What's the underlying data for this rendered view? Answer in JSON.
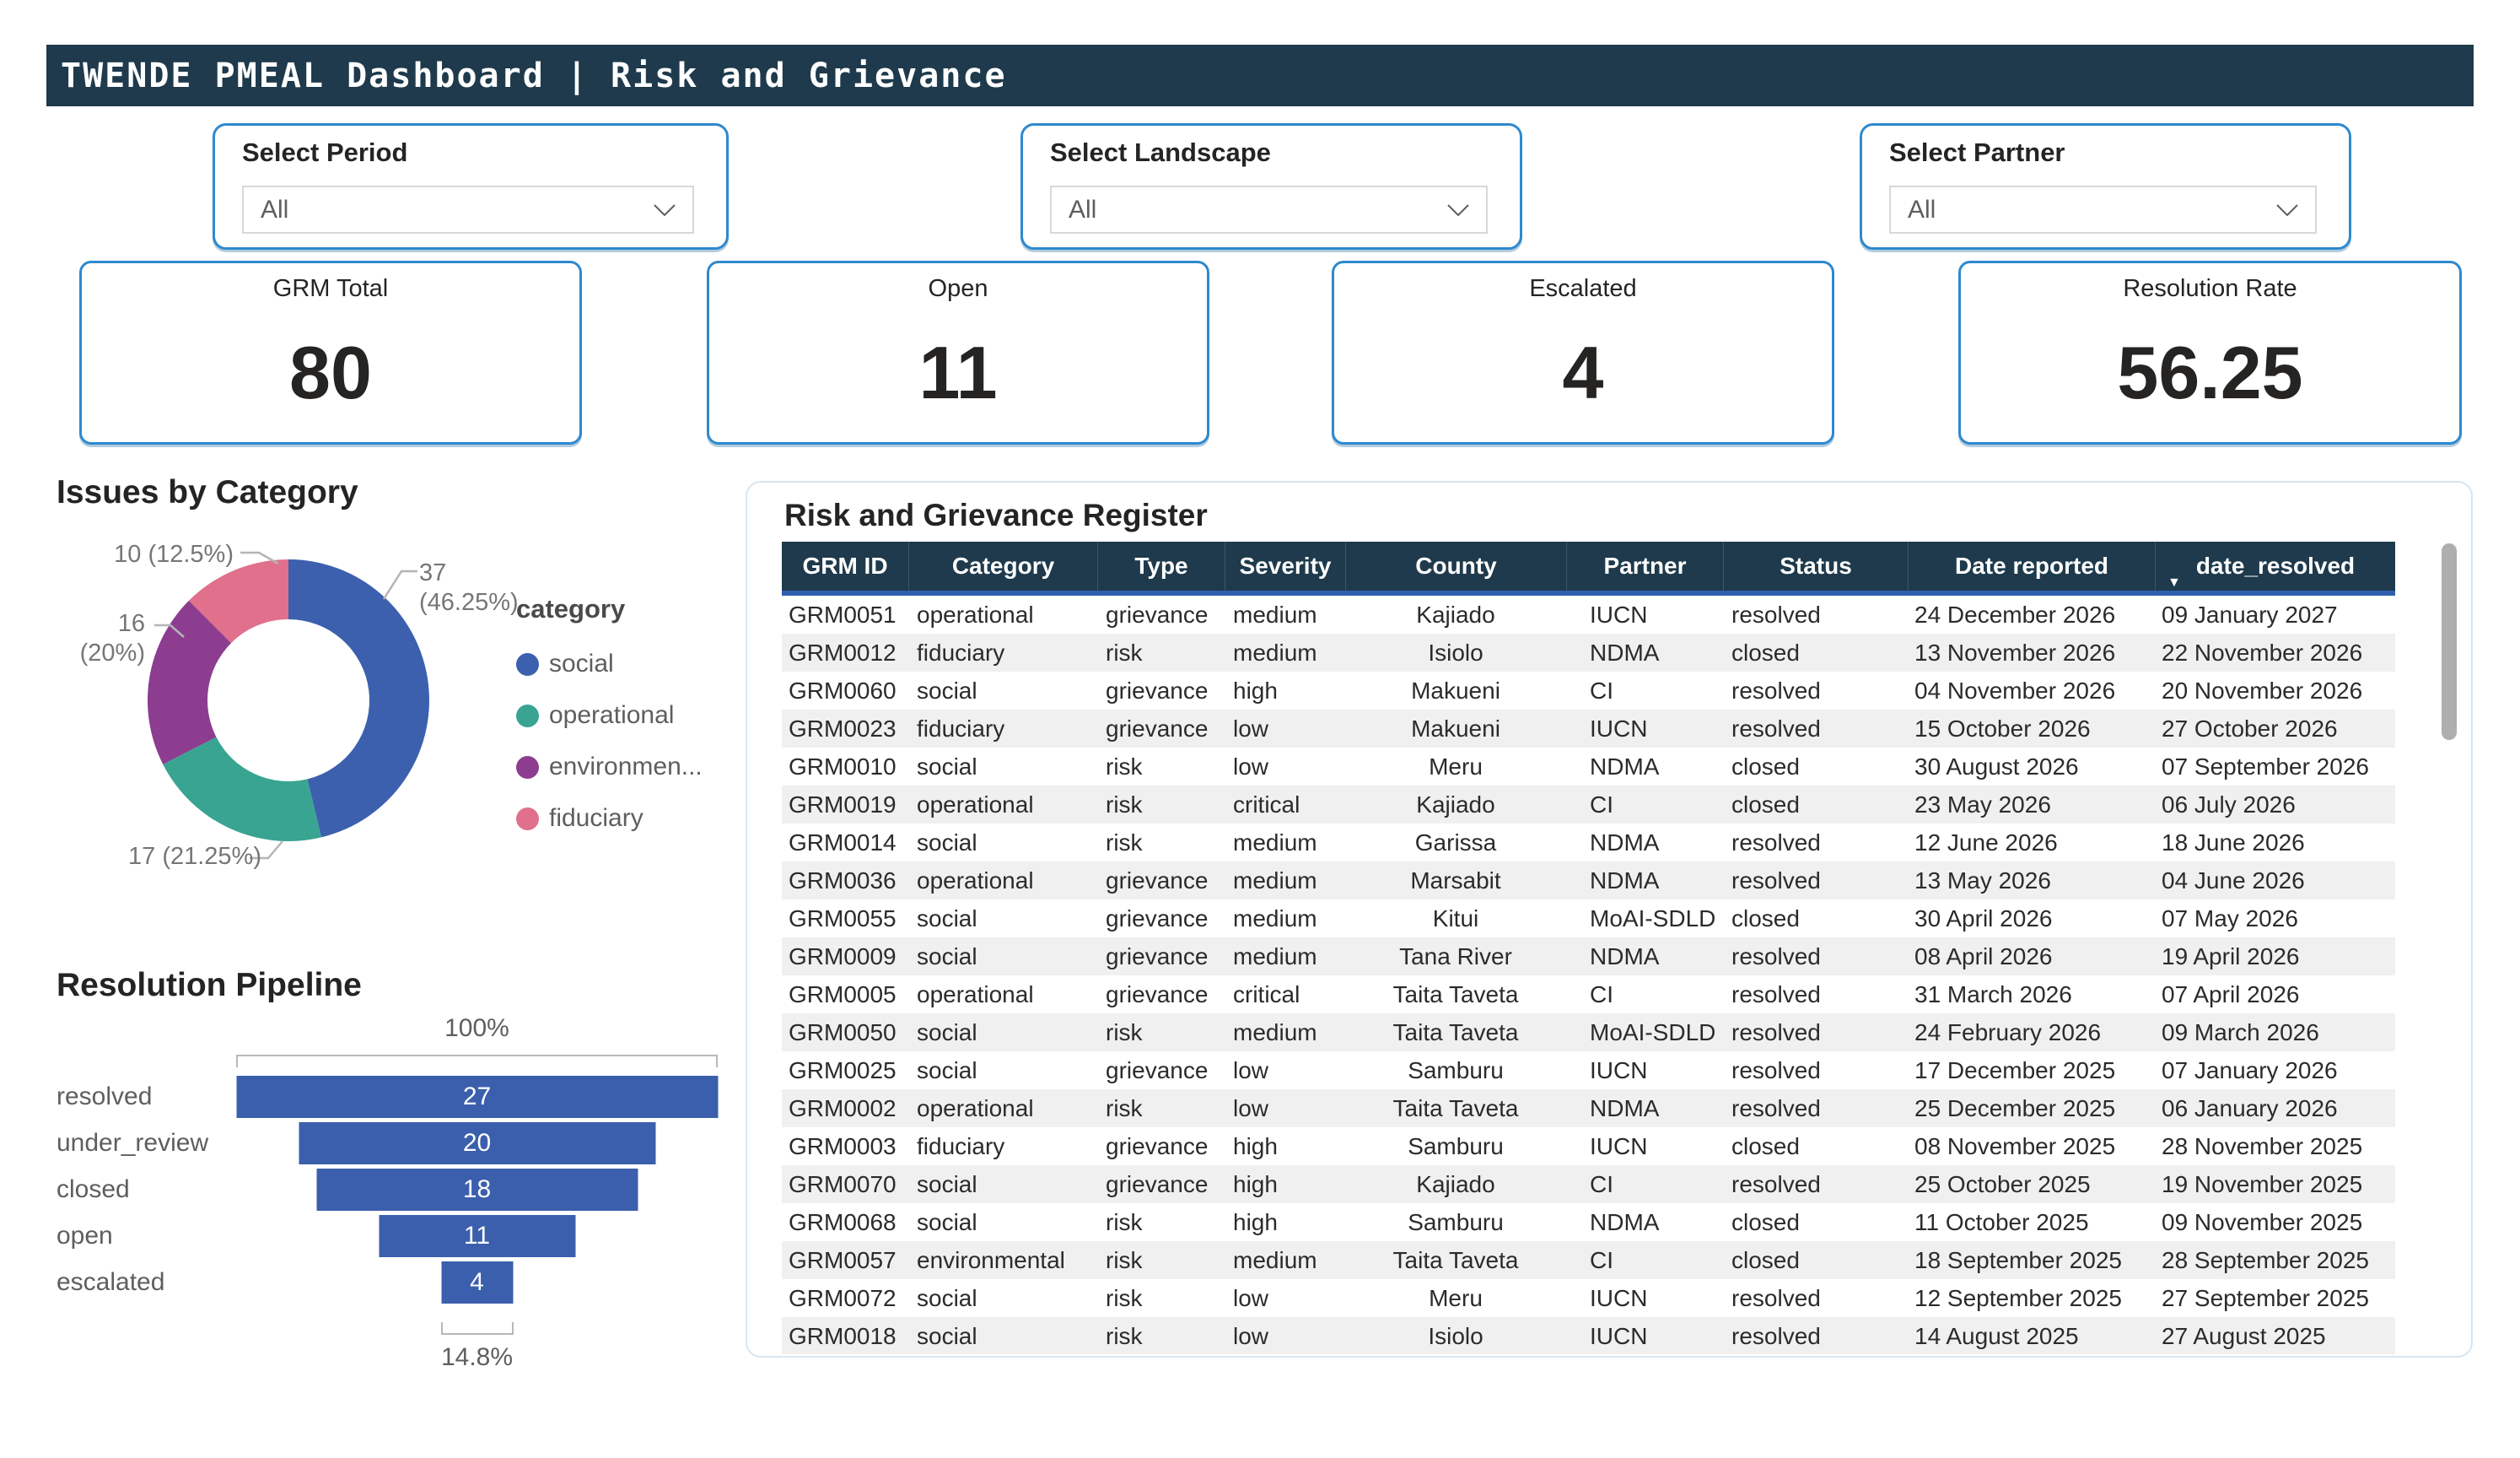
{
  "header": {
    "title": "TWENDE PMEAL Dashboard | Risk and Grievance"
  },
  "slicers": [
    {
      "label": "Select Period",
      "value": "All"
    },
    {
      "label": "Select Landscape",
      "value": "All"
    },
    {
      "label": "Select Partner",
      "value": "All"
    }
  ],
  "kpis": [
    {
      "label": "GRM Total",
      "value": "80"
    },
    {
      "label": "Open",
      "value": "11"
    },
    {
      "label": "Escalated",
      "value": "4"
    },
    {
      "label": "Resolution Rate",
      "value": "56.25"
    }
  ],
  "colors": {
    "bar_dark_teal": "#1E3A4C",
    "card_border_blue": "#2E89CF",
    "accent_blue": "#2F5FAE",
    "funnel_blue": "#3B5FAC"
  },
  "chart_data": [
    {
      "type": "pie",
      "title": "Issues by Category",
      "legend_title": "category",
      "legend_position": "right",
      "donut": true,
      "slices": [
        {
          "name": "social",
          "legend": "social",
          "value": 37,
          "pct": 46.25,
          "label": "37 (46.25%)",
          "color": "#3C60AE"
        },
        {
          "name": "operational",
          "legend": "operational",
          "value": 17,
          "pct": 21.25,
          "label": "17 (21.25%)",
          "color": "#3AA493"
        },
        {
          "name": "environmental",
          "legend": "environmen...",
          "value": 16,
          "pct": 20.0,
          "label": "16 (20%)",
          "color": "#8C3D90"
        },
        {
          "name": "fiduciary",
          "legend": "fiduciary",
          "value": 10,
          "pct": 12.5,
          "label": "10 (12.5%)",
          "color": "#E0708C"
        }
      ]
    },
    {
      "type": "funnel",
      "title": "Resolution Pipeline",
      "categories": [
        "resolved",
        "under_review",
        "closed",
        "open",
        "escalated"
      ],
      "values": [
        27,
        20,
        18,
        11,
        4
      ],
      "top_label": "100%",
      "bottom_label": "14.8%",
      "bar_color": "#3B5FAC"
    }
  ],
  "register": {
    "title": "Risk and Grievance Register",
    "columns": [
      "GRM ID",
      "Category",
      "Type",
      "Severity",
      "County",
      "Partner",
      "Status",
      "Date reported",
      "date_resolved"
    ],
    "sort_column": "date_resolved",
    "sort_direction": "descending",
    "rows": [
      [
        "GRM0051",
        "operational",
        "grievance",
        "medium",
        "Kajiado",
        "IUCN",
        "resolved",
        "24 December 2026",
        "09 January 2027"
      ],
      [
        "GRM0012",
        "fiduciary",
        "risk",
        "medium",
        "Isiolo",
        "NDMA",
        "closed",
        "13 November 2026",
        "22 November 2026"
      ],
      [
        "GRM0060",
        "social",
        "grievance",
        "high",
        "Makueni",
        "CI",
        "resolved",
        "04 November 2026",
        "20 November 2026"
      ],
      [
        "GRM0023",
        "fiduciary",
        "grievance",
        "low",
        "Makueni",
        "IUCN",
        "resolved",
        "15 October 2026",
        "27 October 2026"
      ],
      [
        "GRM0010",
        "social",
        "risk",
        "low",
        "Meru",
        "NDMA",
        "closed",
        "30 August 2026",
        "07 September 2026"
      ],
      [
        "GRM0019",
        "operational",
        "risk",
        "critical",
        "Kajiado",
        "CI",
        "closed",
        "23 May 2026",
        "06 July 2026"
      ],
      [
        "GRM0014",
        "social",
        "risk",
        "medium",
        "Garissa",
        "NDMA",
        "resolved",
        "12 June 2026",
        "18 June 2026"
      ],
      [
        "GRM0036",
        "operational",
        "grievance",
        "medium",
        "Marsabit",
        "NDMA",
        "resolved",
        "13 May 2026",
        "04 June 2026"
      ],
      [
        "GRM0055",
        "social",
        "grievance",
        "medium",
        "Kitui",
        "MoAI-SDLD",
        "closed",
        "30 April 2026",
        "07 May 2026"
      ],
      [
        "GRM0009",
        "social",
        "grievance",
        "medium",
        "Tana River",
        "NDMA",
        "resolved",
        "08 April 2026",
        "19 April 2026"
      ],
      [
        "GRM0005",
        "operational",
        "grievance",
        "critical",
        "Taita Taveta",
        "CI",
        "resolved",
        "31 March 2026",
        "07 April 2026"
      ],
      [
        "GRM0050",
        "social",
        "risk",
        "medium",
        "Taita Taveta",
        "MoAI-SDLD",
        "resolved",
        "24 February 2026",
        "09 March 2026"
      ],
      [
        "GRM0025",
        "social",
        "grievance",
        "low",
        "Samburu",
        "IUCN",
        "resolved",
        "17 December 2025",
        "07 January 2026"
      ],
      [
        "GRM0002",
        "operational",
        "risk",
        "low",
        "Taita Taveta",
        "NDMA",
        "resolved",
        "25 December 2025",
        "06 January 2026"
      ],
      [
        "GRM0003",
        "fiduciary",
        "grievance",
        "high",
        "Samburu",
        "IUCN",
        "closed",
        "08 November 2025",
        "28 November 2025"
      ],
      [
        "GRM0070",
        "social",
        "grievance",
        "high",
        "Kajiado",
        "CI",
        "resolved",
        "25 October 2025",
        "19 November 2025"
      ],
      [
        "GRM0068",
        "social",
        "risk",
        "high",
        "Samburu",
        "NDMA",
        "closed",
        "11 October 2025",
        "09 November 2025"
      ],
      [
        "GRM0057",
        "environmental",
        "risk",
        "medium",
        "Taita Taveta",
        "CI",
        "closed",
        "18 September 2025",
        "28 September 2025"
      ],
      [
        "GRM0072",
        "social",
        "risk",
        "low",
        "Meru",
        "IUCN",
        "resolved",
        "12 September 2025",
        "27 September 2025"
      ],
      [
        "GRM0018",
        "social",
        "risk",
        "low",
        "Isiolo",
        "IUCN",
        "resolved",
        "14 August 2025",
        "27 August 2025"
      ]
    ]
  }
}
